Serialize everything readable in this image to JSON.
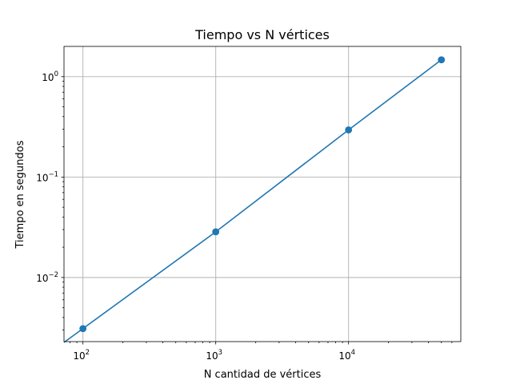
{
  "chart_data": {
    "type": "line",
    "title": "Tiempo vs N vértices",
    "xlabel": "N cantidad de vértices",
    "ylabel": "Tiempo en segundos",
    "xscale": "log",
    "yscale": "log",
    "xlim": [
      72,
      70000
    ],
    "ylim": [
      0.0023,
      2.0
    ],
    "grid": true,
    "x_ticks": [
      {
        "base": "10",
        "exp": "2",
        "value": 100
      },
      {
        "base": "10",
        "exp": "3",
        "value": 1000
      },
      {
        "base": "10",
        "exp": "4",
        "value": 10000
      }
    ],
    "y_ticks": [
      {
        "base": "10",
        "exp": "0",
        "value": 1
      },
      {
        "base": "10",
        "exp": "−1",
        "value": 0.1
      },
      {
        "base": "10",
        "exp": "−2",
        "value": 0.01
      }
    ],
    "series": [
      {
        "color": "#1f77b4",
        "marker": "circle",
        "x": [
          100,
          1000,
          10000,
          50000
        ],
        "y": [
          0.0031,
          0.0285,
          0.295,
          1.47
        ]
      }
    ]
  }
}
